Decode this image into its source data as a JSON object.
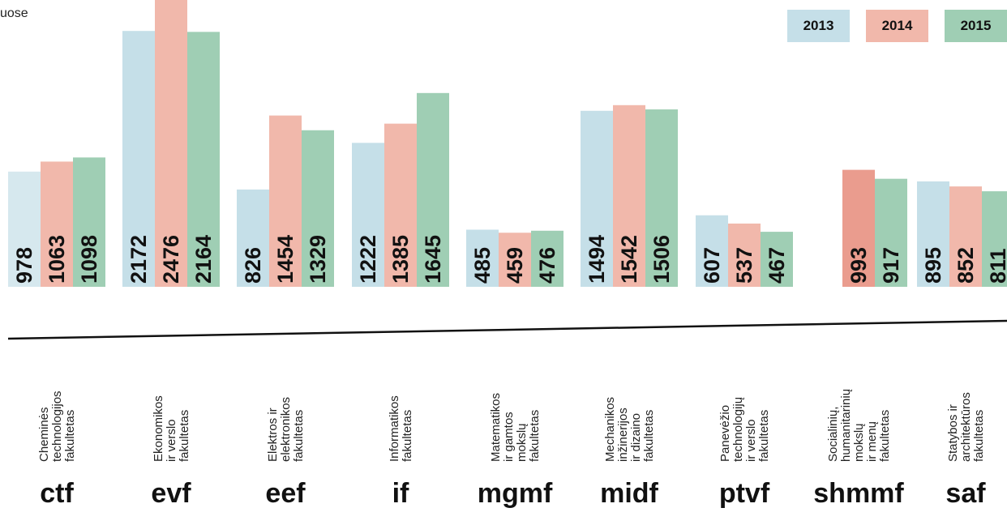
{
  "chart_data": {
    "type": "bar",
    "title": "uose",
    "legend_position": "top-right",
    "grid": false,
    "ylim": [
      0,
      2476
    ],
    "series": [
      {
        "name": "2013",
        "color": "#c5dfe8",
        "values": [
          978,
          2172,
          826,
          1222,
          485,
          1494,
          607,
          null,
          895
        ]
      },
      {
        "name": "2014",
        "color": "#f1b8ab",
        "values": [
          1063,
          2476,
          1454,
          1385,
          459,
          1542,
          537,
          993,
          852
        ]
      },
      {
        "name": "2015",
        "color": "#9fceb4",
        "values": [
          1098,
          2164,
          1329,
          1645,
          476,
          1506,
          467,
          917,
          811
        ]
      }
    ],
    "categories": [
      {
        "code": "ctf",
        "label_lines": [
          "Cheminės",
          "technologijos",
          "fakultetas"
        ]
      },
      {
        "code": "evf",
        "label_lines": [
          "Ekonomikos",
          "ir verslo",
          "fakultetas"
        ]
      },
      {
        "code": "eef",
        "label_lines": [
          "Elektros ir",
          "elektronikos",
          "fakultetas"
        ]
      },
      {
        "code": "if",
        "label_lines": [
          "Informatikos",
          "fakultetas"
        ]
      },
      {
        "code": "mgmf",
        "label_lines": [
          "Matematikos",
          "ir gamtos",
          "mokslų",
          "fakultetas"
        ]
      },
      {
        "code": "midf",
        "label_lines": [
          "Mechanikos",
          "inžinerijos",
          "ir dizaino",
          "fakultetas"
        ]
      },
      {
        "code": "ptvf",
        "label_lines": [
          "Panevėžio",
          "technologijų",
          "ir verslo",
          "fakultetas"
        ]
      },
      {
        "code": "shmmf",
        "label_lines": [
          "Socialinių,",
          "humanitarinių",
          "mokslų",
          "ir menų",
          "fakultetas"
        ]
      },
      {
        "code": "saf",
        "label_lines": [
          "Statybos ir",
          "architektūros",
          "fakultetas"
        ]
      }
    ],
    "highlight_colors": {
      "ctf_2013": "#d6e8ee",
      "shmmf_2014": "#ea9c8e"
    }
  }
}
